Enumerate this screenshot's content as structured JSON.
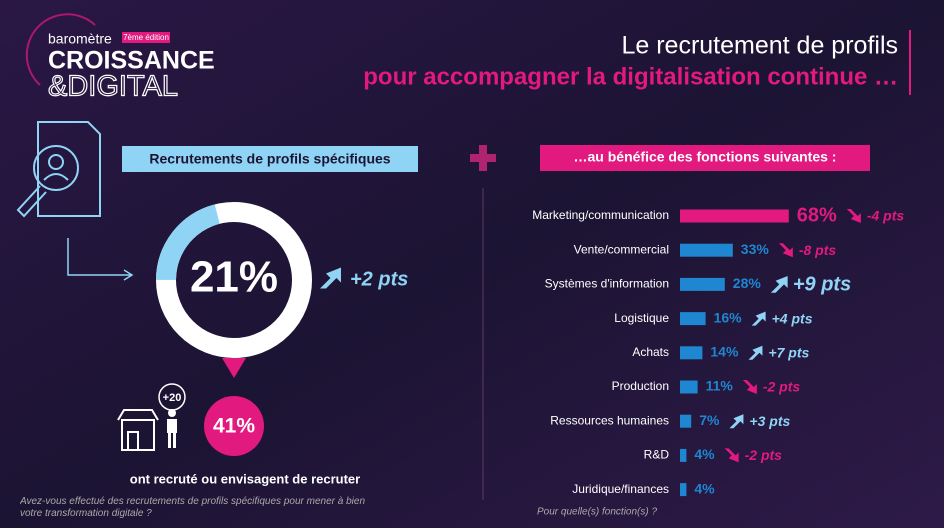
{
  "header": {
    "brand_small": "baromètre",
    "edition": "7ème édition",
    "brand_line1": "CROISSANCE",
    "brand_line2": "&DIGITAL",
    "title": "Le recrutement de profils",
    "subtitle": "pour accompagner la digitalisation continue …"
  },
  "chart_data": [
    {
      "type": "donut",
      "heading": "Recrutements de profils spécifiques",
      "value": 21,
      "value_label": "21%",
      "change": 2,
      "change_label": "+2 pts",
      "color": "#8fd3f5",
      "track_color": "#ffffff",
      "sub_badge": "+20",
      "sub_value": 41,
      "sub_value_label": "41%",
      "sub_caption": "ont recruté ou envisagent de recruter",
      "question": "Avez-vous effectué des recrutements de profils spécifiques pour mener à bien votre transformation digitale ?"
    },
    {
      "type": "bar",
      "heading": "…au bénéfice des fonctions suivantes :",
      "categories": [
        "Marketing/communication",
        "Vente/commercial",
        "Systèmes d'information",
        "Logistique",
        "Achats",
        "Production",
        "Ressources humaines",
        "R&D",
        "Juridique/finances"
      ],
      "values": [
        68,
        33,
        28,
        16,
        14,
        11,
        7,
        4,
        4
      ],
      "value_labels": [
        "68%",
        "33%",
        "28%",
        "16%",
        "14%",
        "11%",
        "7%",
        "4%",
        "4%"
      ],
      "colors": [
        "#e2197f",
        "#1f86d1",
        "#1f86d1",
        "#1f86d1",
        "#1f86d1",
        "#1f86d1",
        "#1f86d1",
        "#1f86d1",
        "#1f86d1"
      ],
      "changes": [
        -4,
        -8,
        9,
        4,
        7,
        -2,
        3,
        -2,
        null
      ],
      "change_labels": [
        "-4 pts",
        "-8 pts",
        "+9 pts",
        "+4 pts",
        "+7 pts",
        "-2 pts",
        "+3 pts",
        "-2 pts",
        null
      ],
      "question": "Pour quelle(s) fonction(s) ?"
    }
  ]
}
